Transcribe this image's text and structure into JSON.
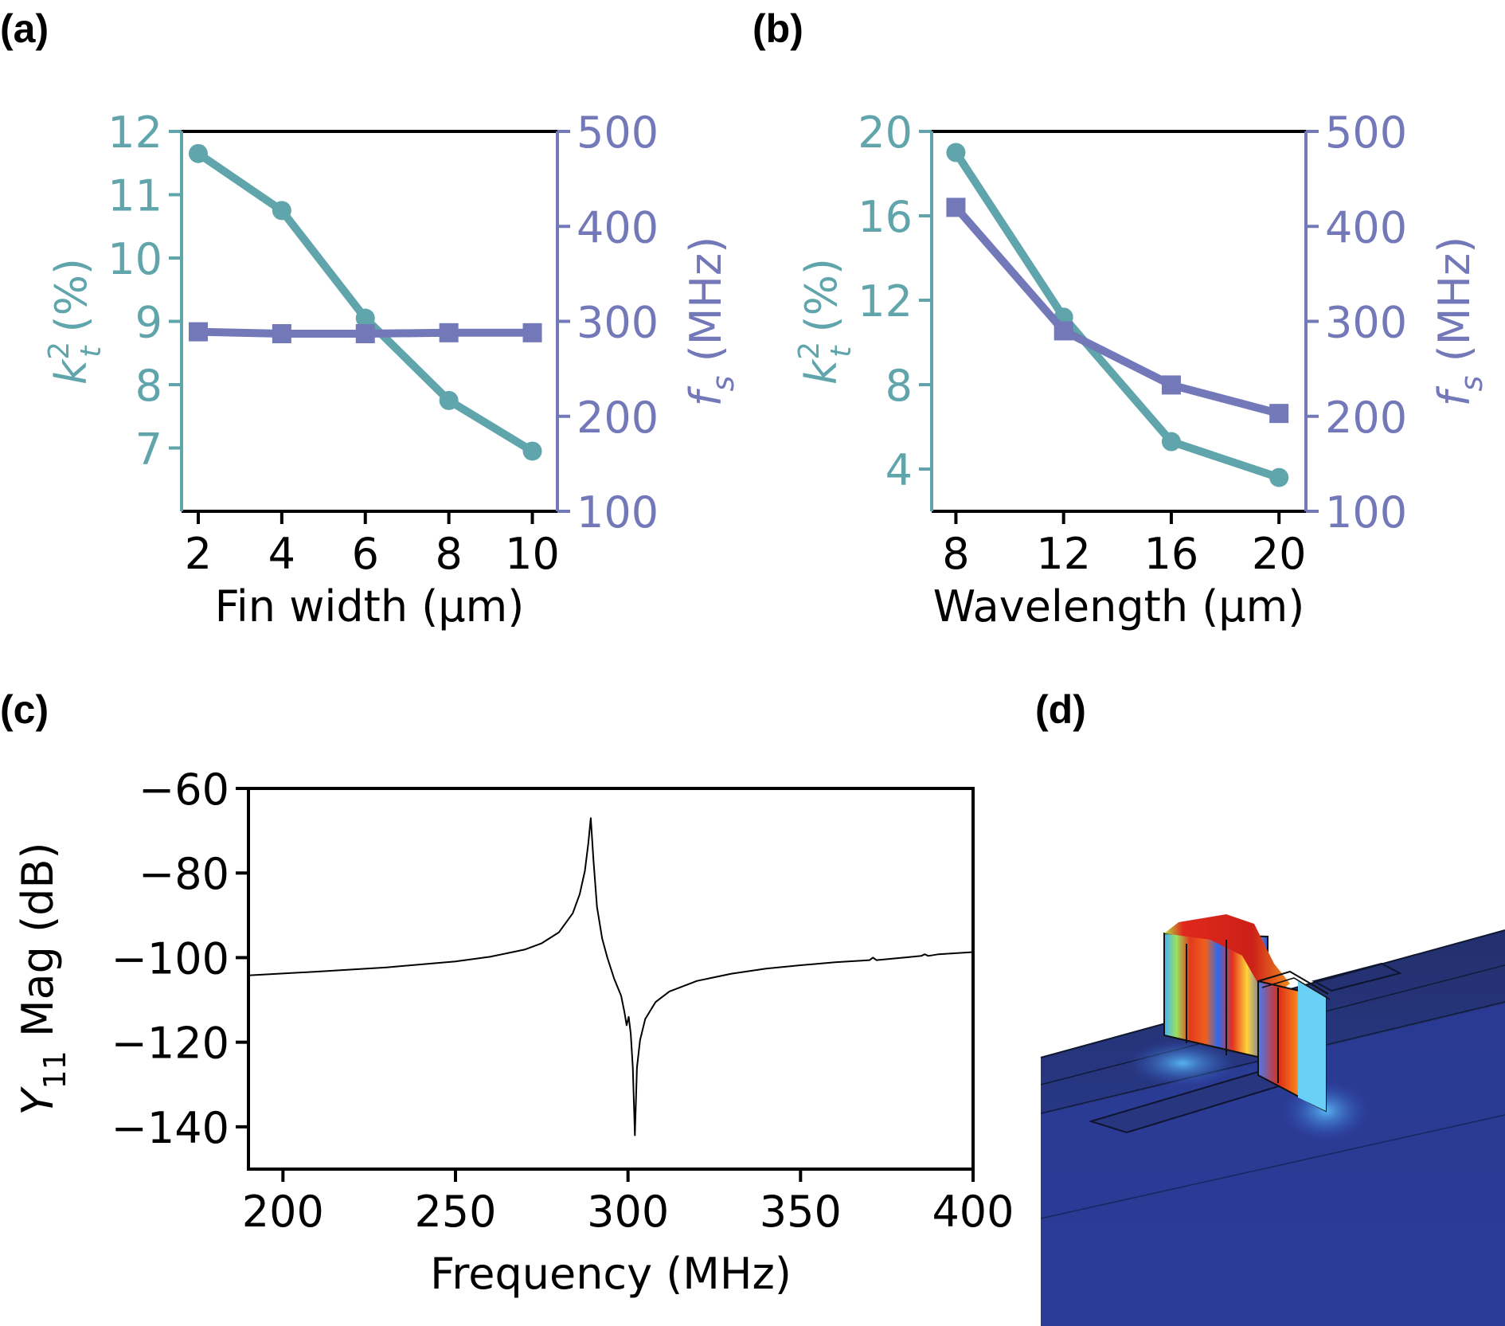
{
  "panel_labels": {
    "a": "(a)",
    "b": "(b)",
    "c": "(c)",
    "d": "(d)"
  },
  "colors": {
    "teal": "#5fa5ab",
    "purple": "#7378b8",
    "black": "#000000"
  },
  "chart_data": [
    {
      "id": "a",
      "type": "line",
      "title": "",
      "xlabel": "Fin width (μm)",
      "ylabel_left": {
        "main": "k",
        "sup": "2",
        "sub": "t",
        "rest": " (%)"
      },
      "ylabel_right": {
        "main": "f",
        "sub": "s",
        "rest": " (MHz)"
      },
      "x": [
        2,
        4,
        6,
        8,
        10
      ],
      "xticks": [
        2,
        4,
        6,
        8,
        10
      ],
      "xlim": [
        1.6,
        10.6
      ],
      "ylim_left": [
        6,
        12
      ],
      "yticks_left": [
        7,
        8,
        9,
        10,
        11,
        12
      ],
      "ylim_right": [
        100,
        500
      ],
      "yticks_right": [
        100,
        200,
        300,
        400,
        500
      ],
      "series": [
        {
          "name": "k_t^2",
          "axis": "left",
          "marker": "circle",
          "color": "#5fa5ab",
          "values": [
            11.65,
            10.75,
            9.05,
            7.75,
            6.95
          ]
        },
        {
          "name": "f_s",
          "axis": "right",
          "marker": "square",
          "color": "#7378b8",
          "values": [
            289,
            287,
            287,
            288,
            288
          ]
        }
      ]
    },
    {
      "id": "b",
      "type": "line",
      "title": "",
      "xlabel": "Wavelength (μm)",
      "ylabel_left": {
        "main": "k",
        "sup": "2",
        "sub": "t",
        "rest": " (%)"
      },
      "ylabel_right": {
        "main": "f",
        "sub": "s",
        "rest": " (MHz)"
      },
      "x": [
        8,
        12,
        16,
        20
      ],
      "xticks": [
        8,
        12,
        16,
        20
      ],
      "xlim": [
        7.1,
        21.0
      ],
      "ylim_left": [
        2,
        20
      ],
      "yticks_left": [
        4,
        8,
        12,
        16,
        20
      ],
      "ylim_right": [
        100,
        500
      ],
      "yticks_right": [
        100,
        200,
        300,
        400,
        500
      ],
      "series": [
        {
          "name": "k_t^2",
          "axis": "left",
          "marker": "circle",
          "color": "#5fa5ab",
          "values": [
            19.0,
            11.2,
            5.3,
            3.6
          ]
        },
        {
          "name": "f_s",
          "axis": "right",
          "marker": "square",
          "color": "#7378b8",
          "values": [
            420,
            290,
            233,
            203
          ]
        }
      ]
    },
    {
      "id": "c",
      "type": "line",
      "title": "",
      "xlabel": "Frequency (MHz)",
      "ylabel": {
        "main": "Y",
        "sub": "11",
        "rest": " Mag (dB)"
      },
      "xticks": [
        200,
        250,
        300,
        350,
        400
      ],
      "xlim": [
        190,
        400
      ],
      "ylim": [
        -150,
        -60
      ],
      "yticks": [
        -60,
        -80,
        -100,
        -120,
        -140
      ],
      "ytick_labels": [
        "−60",
        "−80",
        "−100",
        "−120",
        "−140"
      ],
      "series": [
        {
          "name": "Y11",
          "color": "#000000",
          "x": [
            190,
            210,
            230,
            250,
            260,
            270,
            275,
            280,
            284,
            286,
            287.5,
            288.5,
            289.2,
            290,
            291,
            292.5,
            294,
            296,
            298,
            299,
            299.6,
            300.2,
            300.8,
            301.4,
            302.0,
            302.6,
            303.5,
            305,
            308,
            312,
            320,
            330,
            340,
            350,
            360,
            370,
            371,
            372,
            380,
            385,
            386,
            387,
            390,
            400
          ],
          "y": [
            -104.2,
            -103.3,
            -102.3,
            -100.9,
            -99.8,
            -98.1,
            -96.6,
            -94.0,
            -89.5,
            -85.0,
            -79.5,
            -73.0,
            -67.0,
            -77.0,
            -88.0,
            -95.5,
            -100.0,
            -105.0,
            -109.0,
            -113.0,
            -116.0,
            -114.0,
            -118.0,
            -126.0,
            -142.0,
            -126.0,
            -119.5,
            -114.5,
            -110.5,
            -108.0,
            -105.5,
            -103.8,
            -102.6,
            -101.8,
            -101.1,
            -100.6,
            -100.0,
            -100.6,
            -100.0,
            -99.6,
            -99.2,
            -99.6,
            -99.2,
            -98.7
          ]
        }
      ]
    }
  ]
}
